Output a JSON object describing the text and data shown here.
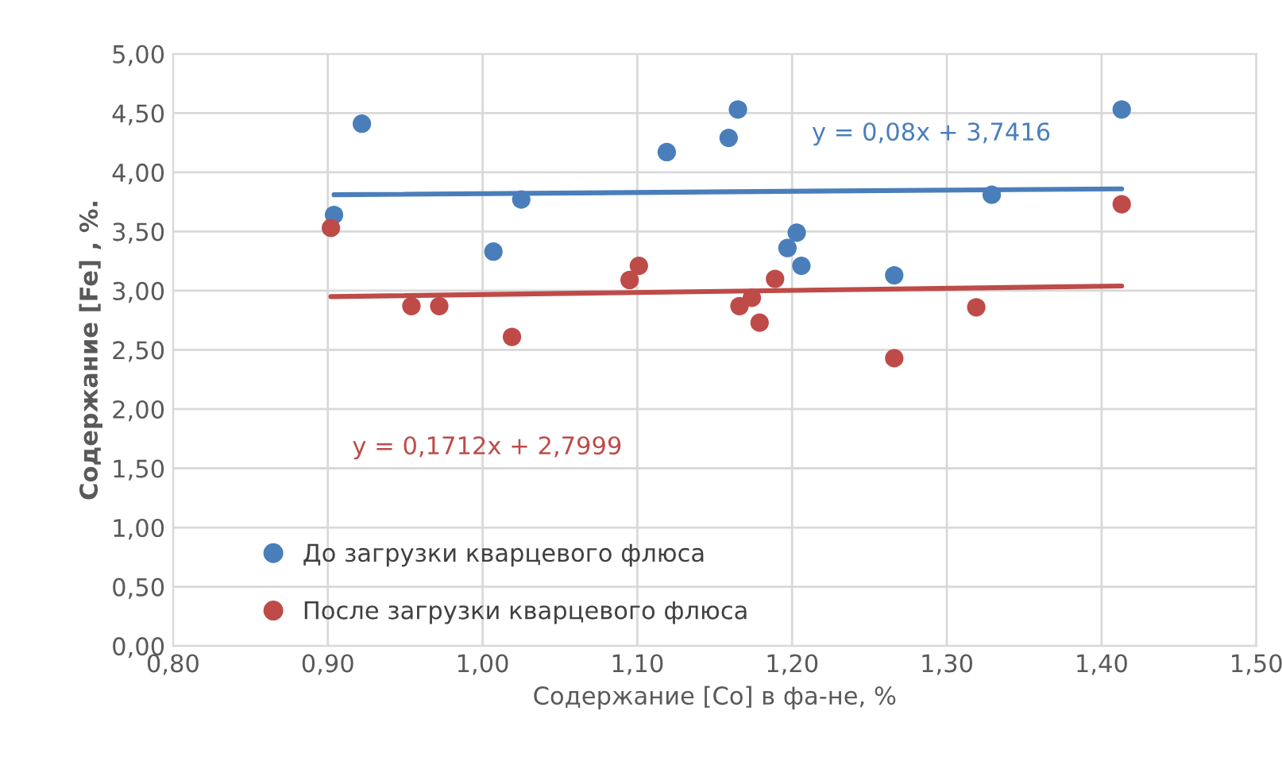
{
  "chart_data": {
    "type": "scatter",
    "xlabel": "Содержание [Co] в фа-не, %",
    "ylabel": "Содержание [Fe] , %.",
    "xlim": [
      0.8,
      1.5
    ],
    "ylim": [
      0,
      5
    ],
    "xticks": [
      {
        "value": 0.8,
        "label": "0,80"
      },
      {
        "value": 0.9,
        "label": "0,90"
      },
      {
        "value": 1.0,
        "label": "1,00"
      },
      {
        "value": 1.1,
        "label": "1,10"
      },
      {
        "value": 1.2,
        "label": "1,20"
      },
      {
        "value": 1.3,
        "label": "1,30"
      },
      {
        "value": 1.4,
        "label": "1,40"
      },
      {
        "value": 1.5,
        "label": "1,50"
      }
    ],
    "yticks": [
      {
        "value": 0,
        "label": "0,00"
      },
      {
        "value": 0.5,
        "label": "0,50"
      },
      {
        "value": 1,
        "label": "1,00"
      },
      {
        "value": 1.5,
        "label": "1,50"
      },
      {
        "value": 2,
        "label": "2,00"
      },
      {
        "value": 2.5,
        "label": "2,50"
      },
      {
        "value": 3,
        "label": "3,00"
      },
      {
        "value": 3.5,
        "label": "3,50"
      },
      {
        "value": 4,
        "label": "4,00"
      },
      {
        "value": 4.5,
        "label": "4,50"
      },
      {
        "value": 5,
        "label": "5,00"
      }
    ],
    "grid": true,
    "legend": "bottom left",
    "marker": "circle",
    "series": [
      {
        "name": "До загрузки кварцевого флюса",
        "color": "#4a7ebb",
        "x": [
          0.904,
          0.922,
          1.007,
          1.025,
          1.119,
          1.159,
          1.165,
          1.197,
          1.203,
          1.206,
          1.266,
          1.329,
          1.413
        ],
        "values": [
          3.64,
          4.41,
          3.33,
          3.77,
          4.17,
          4.29,
          4.53,
          3.36,
          3.49,
          3.21,
          3.13,
          3.81,
          4.53
        ]
      },
      {
        "name": "После загрузки кварцевого флюса",
        "color": "#be4b48",
        "x": [
          0.902,
          0.954,
          0.972,
          1.019,
          1.095,
          1.101,
          1.166,
          1.174,
          1.179,
          1.189,
          1.266,
          1.319,
          1.413
        ],
        "values": [
          3.53,
          2.87,
          2.87,
          2.61,
          3.09,
          3.21,
          2.87,
          2.94,
          2.73,
          3.1,
          2.43,
          2.86,
          3.73
        ]
      },
      {
        "type": "line",
        "marker": "none",
        "color": "#4a7ebb",
        "x": [
          0.904,
          1.413
        ],
        "values": [
          3.81,
          3.86
        ]
      },
      {
        "type": "line",
        "marker": "none",
        "color": "#be4b48",
        "x": [
          0.902,
          1.413
        ],
        "values": [
          2.95,
          3.04
        ]
      }
    ],
    "annotations": [
      "y = 0,08x + 3,7416",
      "y = 0,1712x + 2,7999"
    ]
  }
}
